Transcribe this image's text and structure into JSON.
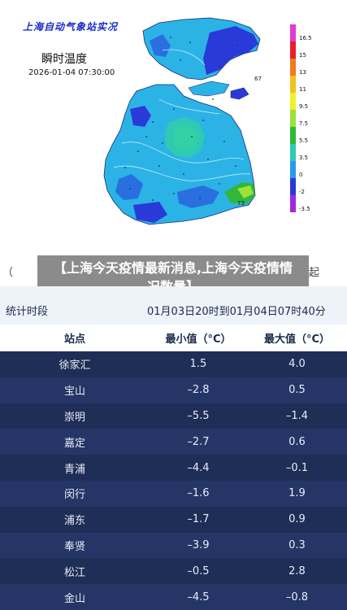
{
  "map": {
    "title": "上海自动气象站实况",
    "subtitle": "瞬时温度",
    "datetime": "2026-01-04 07:30:00",
    "legend": [
      {
        "label": "16.5",
        "color": "#e23ad3"
      },
      {
        "label": "15",
        "color": "#e8202a"
      },
      {
        "label": "13",
        "color": "#ef7a1f"
      },
      {
        "label": "11",
        "color": "#f2c21e"
      },
      {
        "label": "9.5",
        "color": "#f0f02a"
      },
      {
        "label": "7.5",
        "color": "#9be23a"
      },
      {
        "label": "5.5",
        "color": "#2fb83a"
      },
      {
        "label": "3.5",
        "color": "#2fc9b4"
      },
      {
        "label": "0",
        "color": "#2a9ae8"
      },
      {
        "label": "-2",
        "color": "#2a3ad8"
      },
      {
        "label": "-3.5",
        "color": "#a02ad8"
      }
    ],
    "side_value": "67",
    "bottom_value": "73"
  },
  "banner": {
    "text": "【上海今天疫情最新消息,上海今天疫情情况数量】",
    "peek_left": "（",
    "peek_right": "起"
  },
  "stats": {
    "label": "统计时段",
    "value": "01月03日20时到01月04日07时40分"
  },
  "table": {
    "headers": [
      "站点",
      "最小值（°C）",
      "最大值（°C）"
    ],
    "rows": [
      [
        "徐家汇",
        "1.5",
        "4.0"
      ],
      [
        "宝山",
        "–2.8",
        "0.5"
      ],
      [
        "崇明",
        "–5.5",
        "–1.4"
      ],
      [
        "嘉定",
        "–2.7",
        "0.6"
      ],
      [
        "青浦",
        "–4.4",
        "–0.1"
      ],
      [
        "闵行",
        "–1.6",
        "1.9"
      ],
      [
        "浦东",
        "–1.7",
        "0.9"
      ],
      [
        "奉贤",
        "–3.9",
        "0.3"
      ],
      [
        "松江",
        "–0.5",
        "2.8"
      ],
      [
        "金山",
        "–4.5",
        "–0.8"
      ]
    ]
  }
}
